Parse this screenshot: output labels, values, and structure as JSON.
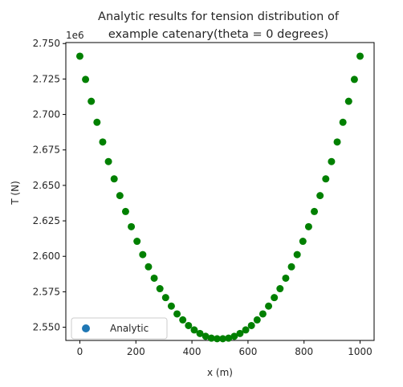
{
  "chart_data": {
    "type": "scatter",
    "title_lines": [
      "Analytic results for tension distribution of",
      "example catenary(theta = 0 degrees)"
    ],
    "xlabel": "x (m)",
    "ylabel": "T (N)",
    "y_offset_label": "1e6",
    "xlim": [
      -50,
      1050
    ],
    "ylim": [
      2.5407,
      2.7507
    ],
    "x_ticks": [
      0,
      200,
      400,
      600,
      800,
      1000
    ],
    "x_tick_labels": [
      "0",
      "200",
      "400",
      "600",
      "800",
      "1000"
    ],
    "y_ticks": [
      2.55,
      2.575,
      2.6,
      2.625,
      2.65,
      2.675,
      2.7,
      2.725,
      2.75
    ],
    "y_tick_labels": [
      "2.550",
      "2.575",
      "2.600",
      "2.625",
      "2.650",
      "2.675",
      "2.700",
      "2.725",
      "2.750"
    ],
    "grid": false,
    "legend_position": "lower left",
    "legend_marker_color": "#1f77b4",
    "series": [
      {
        "name": "Analytic",
        "color": "#008000",
        "x": [
          0,
          20.41,
          40.82,
          61.22,
          81.63,
          102.04,
          122.45,
          142.86,
          163.27,
          183.67,
          204.08,
          224.49,
          244.9,
          265.31,
          285.71,
          306.12,
          326.53,
          346.94,
          367.35,
          387.76,
          408.16,
          428.57,
          448.98,
          469.39,
          489.8,
          510.2,
          530.61,
          551.02,
          571.43,
          591.84,
          612.24,
          632.65,
          653.06,
          673.47,
          693.88,
          714.29,
          734.69,
          755.1,
          775.51,
          795.92,
          816.33,
          836.73,
          857.14,
          877.55,
          897.96,
          918.37,
          938.78,
          959.18,
          979.59,
          1000
        ],
        "y": [
          2.7411,
          2.7247,
          2.7093,
          2.6945,
          2.6806,
          2.6668,
          2.6546,
          2.6428,
          2.6316,
          2.6209,
          2.6106,
          2.6012,
          2.5926,
          2.5846,
          2.5772,
          2.5709,
          2.5649,
          2.5594,
          2.5552,
          2.5512,
          2.5481,
          2.5456,
          2.5436,
          2.5423,
          2.5419,
          2.5419,
          2.5423,
          2.5436,
          2.5456,
          2.5481,
          2.5512,
          2.5552,
          2.5594,
          2.5649,
          2.5709,
          2.5772,
          2.5846,
          2.5926,
          2.6012,
          2.6106,
          2.6209,
          2.6316,
          2.6428,
          2.6546,
          2.6668,
          2.6806,
          2.6945,
          2.7093,
          2.7247,
          2.7411
        ]
      }
    ]
  }
}
